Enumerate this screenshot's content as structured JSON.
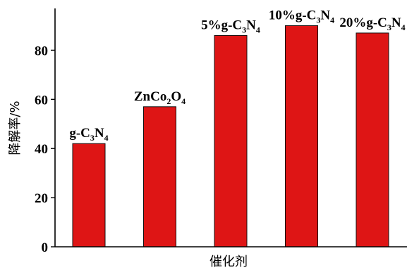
{
  "chart_data": {
    "type": "bar",
    "categories": [
      "g-C3N4",
      "ZnCo2O4",
      "5%g-C3N4",
      "10%g-C3N4",
      "20%g-C3N4"
    ],
    "category_labels": [
      [
        {
          "t": "g-C",
          "s": false
        },
        {
          "t": "3",
          "s": true
        },
        {
          "t": "N",
          "s": false
        },
        {
          "t": "4",
          "s": true
        }
      ],
      [
        {
          "t": "ZnCo",
          "s": false
        },
        {
          "t": "2",
          "s": true
        },
        {
          "t": "O",
          "s": false
        },
        {
          "t": "4",
          "s": true
        }
      ],
      [
        {
          "t": "5%g-C",
          "s": false
        },
        {
          "t": "3",
          "s": true
        },
        {
          "t": "N",
          "s": false
        },
        {
          "t": "4",
          "s": true
        }
      ],
      [
        {
          "t": "10%g-C",
          "s": false
        },
        {
          "t": "3",
          "s": true
        },
        {
          "t": "N",
          "s": false
        },
        {
          "t": "4",
          "s": true
        }
      ],
      [
        {
          "t": "20%g-C",
          "s": false
        },
        {
          "t": "3",
          "s": true
        },
        {
          "t": "N",
          "s": false
        },
        {
          "t": "4",
          "s": true
        }
      ]
    ],
    "values": [
      42,
      57,
      86,
      90,
      87
    ],
    "xlabel": "催化剂",
    "ylabel": "降解率/%",
    "ylim": [
      0,
      97
    ],
    "yticks": [
      0,
      20,
      40,
      60,
      80
    ],
    "grid": false,
    "bar_color": "#de1515"
  }
}
